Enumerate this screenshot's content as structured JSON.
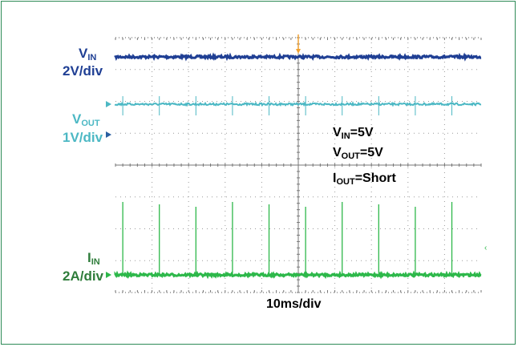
{
  "chart_data": {
    "type": "line",
    "title": "",
    "channels": [
      {
        "id": "vin",
        "name": "V",
        "name_sub": "IN",
        "scale": "2V/div",
        "color": "#1f3f94",
        "trace": "flat"
      },
      {
        "id": "vout",
        "name": "V",
        "name_sub": "OUT",
        "scale": "1V/div",
        "color": "#4cb8c4",
        "trace": "flat-with-small-spikes"
      },
      {
        "id": "iin",
        "name": "I",
        "name_sub": "IN",
        "scale": "2A/div",
        "color": "#2db84a",
        "trace": "periodic-current-spikes"
      }
    ],
    "timebase": "10ms/div",
    "divisions": {
      "x": 10,
      "y": 8
    },
    "grid": true,
    "conditions": [
      {
        "param": "V",
        "sub": "IN",
        "value": "=5V"
      },
      {
        "param": "V",
        "sub": "OUT",
        "value": "=5V"
      },
      {
        "param": "I",
        "sub": "OUT",
        "value": "=Short"
      }
    ],
    "spike_times_ms": [
      2,
      12,
      22,
      32,
      42,
      52,
      62,
      72,
      82,
      92
    ],
    "colors": {
      "frame": "#2e8b57",
      "trigger": "#f0a030"
    }
  }
}
